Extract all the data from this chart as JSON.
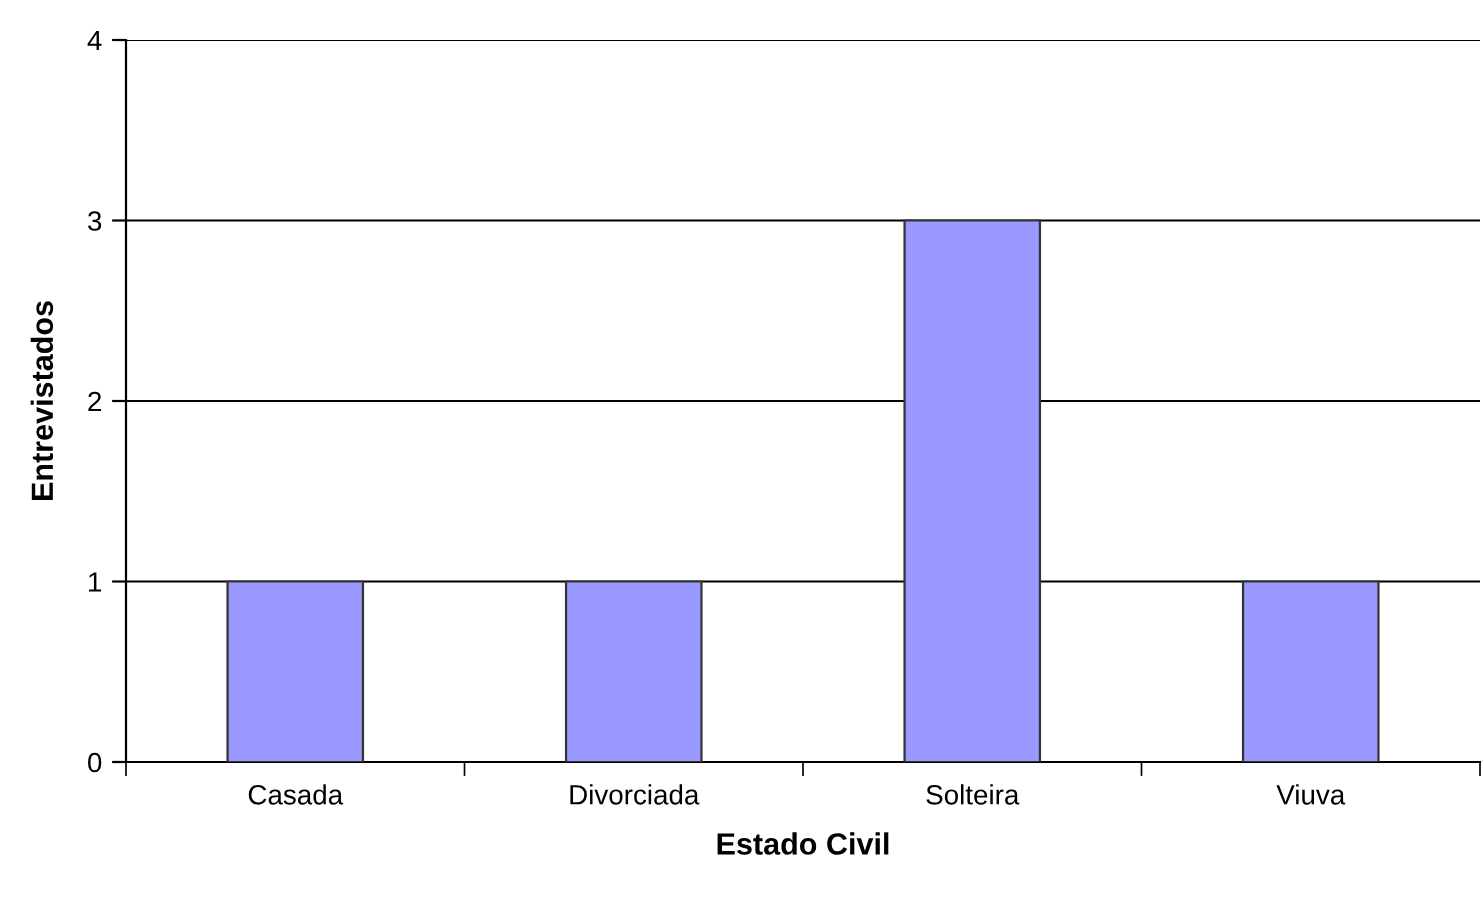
{
  "chart_data": {
    "type": "bar",
    "xlabel": "Estado Civil",
    "ylabel": "Entrevistados",
    "categories": [
      "Casada",
      "Divorciada",
      "Solteira",
      "Viuva"
    ],
    "values": [
      1,
      1,
      3,
      1
    ],
    "color": "#9999ff",
    "ylim": [
      0,
      4
    ],
    "yticks": [
      0,
      1,
      2,
      3,
      4
    ],
    "grid": "y",
    "legend": false
  }
}
